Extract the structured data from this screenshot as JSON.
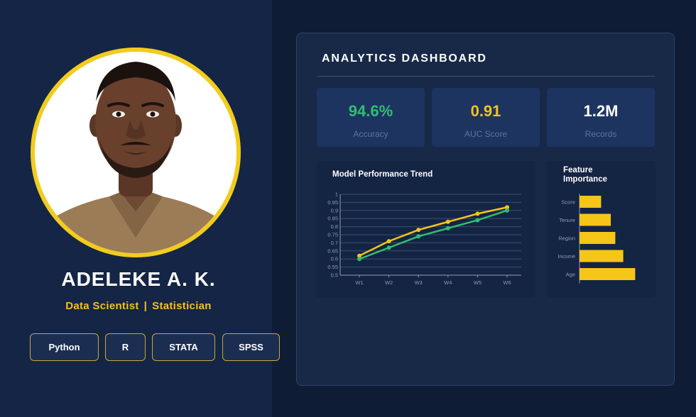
{
  "profile": {
    "name": "ADELEKE A. K.",
    "role_primary": "Data Scientist",
    "role_separator": "|",
    "role_secondary": "Statistician",
    "skills": [
      "Python",
      "R",
      "STATA",
      "SPSS"
    ]
  },
  "dashboard": {
    "title": "ANALYTICS DASHBOARD",
    "kpis": [
      {
        "value": "94.6%",
        "label": "Accuracy",
        "color": "#2fbf71"
      },
      {
        "value": "0.91",
        "label": "AUC Score",
        "color": "#f2c21b"
      },
      {
        "value": "1.2M",
        "label": "Records",
        "color": "#ffffff"
      }
    ]
  },
  "colors": {
    "accent_yellow": "#f5c518",
    "accent_green": "#2fbf71",
    "background": "#0f1c36"
  },
  "chart_data": [
    {
      "type": "line",
      "title": "Model Performance Trend",
      "categories": [
        "W1",
        "W2",
        "W3",
        "W4",
        "W5",
        "W6"
      ],
      "y_ticks": [
        "0.5",
        "0.55",
        "0.6",
        "0.65",
        "0.7",
        "0.75",
        "0.8",
        "0.85",
        "0.9",
        "0.95",
        "1"
      ],
      "ylim": [
        0.5,
        1.0
      ],
      "grid": true,
      "series": [
        {
          "values": [
            0.62,
            0.71,
            0.78,
            0.83,
            0.88,
            0.92
          ],
          "color": "#f5c518"
        },
        {
          "values": [
            0.6,
            0.67,
            0.74,
            0.79,
            0.84,
            0.9
          ],
          "color": "#2fbf71"
        }
      ]
    },
    {
      "type": "bar",
      "orientation": "horizontal",
      "title_lines": [
        "Feature",
        "Importance"
      ],
      "categories": [
        "Score",
        "Tenure",
        "Region",
        "Income",
        "Age"
      ],
      "values": [
        0.38,
        0.55,
        0.63,
        0.77,
        0.98
      ],
      "xlim": [
        0,
        1
      ],
      "color": "#f5c518"
    }
  ]
}
